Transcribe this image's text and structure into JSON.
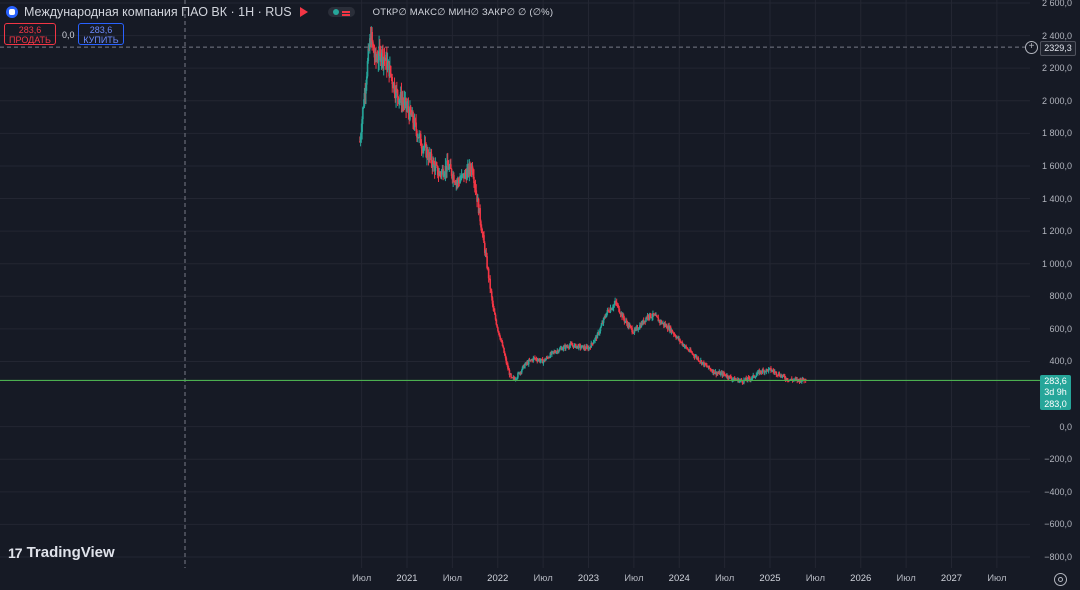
{
  "header": {
    "symbol_title": "Международная компания ПАО ВК · 1Н · RUS",
    "ohlc_text": "ОТКР∅ МАКС∅ МИН∅ ЗАКР∅ ∅ (∅%)"
  },
  "trade": {
    "sell_price": "283,6",
    "sell_label": "ПРОДАТЬ",
    "spread": "0,0",
    "buy_price": "283,6",
    "buy_label": "КУПИТЬ"
  },
  "logo_text": "TradingView",
  "logo_mark": "17",
  "crosshair_price_label": "2329,3",
  "current_price": {
    "price_label": "283,6",
    "countdown_label": "3d 9h",
    "second_label": "283,0"
  },
  "colors": {
    "background": "#161a25",
    "up": "#26a69a",
    "down": "#f23645",
    "price_line": "#4caf50",
    "grid": "#232632"
  },
  "chart_data": {
    "type": "line",
    "chart_style": "candlestick",
    "ylim": [
      -850,
      2600
    ],
    "y_ticks": [
      "2 600,0",
      "2 400,0",
      "2 200,0",
      "2 000,0",
      "1 800,0",
      "1 600,0",
      "1 400,0",
      "1 200,0",
      "1 000,0",
      "800,0",
      "600,0",
      "400,0",
      "0,0",
      "−200,0",
      "−400,0",
      "−600,0",
      "−800,0"
    ],
    "y_tick_values": [
      2600,
      2400,
      2200,
      2000,
      1800,
      1600,
      1400,
      1200,
      1000,
      800,
      600,
      400,
      0,
      -200,
      -400,
      -600,
      -800
    ],
    "x_ticks": [
      "Июл",
      "2021",
      "Июл",
      "2022",
      "Июл",
      "2023",
      "Июл",
      "2024",
      "Июл",
      "2025",
      "Июл",
      "2026",
      "Июл",
      "2027",
      "Июл"
    ],
    "x_tick_values": [
      2020.5,
      2021.0,
      2021.5,
      2022.0,
      2022.5,
      2023.0,
      2023.5,
      2024.0,
      2024.5,
      2025.0,
      2025.5,
      2026.0,
      2026.5,
      2027.0,
      2027.5
    ],
    "xlim": [
      2018.53,
      2028.17
    ],
    "current_price": 283.6,
    "crosshair_price": 2329.3,
    "series": [
      {
        "x": [
          2020.48,
          2020.55,
          2020.6,
          2020.65,
          2020.72,
          2020.8,
          2020.88,
          2020.95,
          2021.05,
          2021.15,
          2021.25,
          2021.35,
          2021.45,
          2021.55,
          2021.65,
          2021.72,
          2021.8,
          2021.88,
          2021.95,
          2022.0,
          2022.05,
          2022.1,
          2022.15,
          2022.2,
          2022.25,
          2022.3,
          2022.4,
          2022.5,
          2022.6,
          2022.7,
          2022.8,
          2022.9,
          2023.0,
          2023.1,
          2023.2,
          2023.3,
          2023.4,
          2023.5,
          2023.6,
          2023.65,
          2023.72,
          2023.8,
          2023.9,
          2024.0,
          2024.1,
          2024.2,
          2024.3,
          2024.4,
          2024.5,
          2024.6,
          2024.7,
          2024.8,
          2024.9,
          2025.0,
          2025.1,
          2025.2,
          2025.3,
          2025.4
        ],
        "y": [
          1750,
          2150,
          2400,
          2250,
          2300,
          2200,
          2050,
          2000,
          1900,
          1750,
          1650,
          1550,
          1600,
          1500,
          1550,
          1600,
          1300,
          1000,
          720,
          600,
          500,
          380,
          290,
          300,
          340,
          380,
          420,
          400,
          450,
          480,
          500,
          490,
          480,
          560,
          700,
          760,
          650,
          580,
          640,
          680,
          680,
          640,
          600,
          530,
          470,
          420,
          370,
          330,
          320,
          290,
          280,
          300,
          340,
          350,
          320,
          290,
          285,
          290
        ]
      }
    ]
  }
}
